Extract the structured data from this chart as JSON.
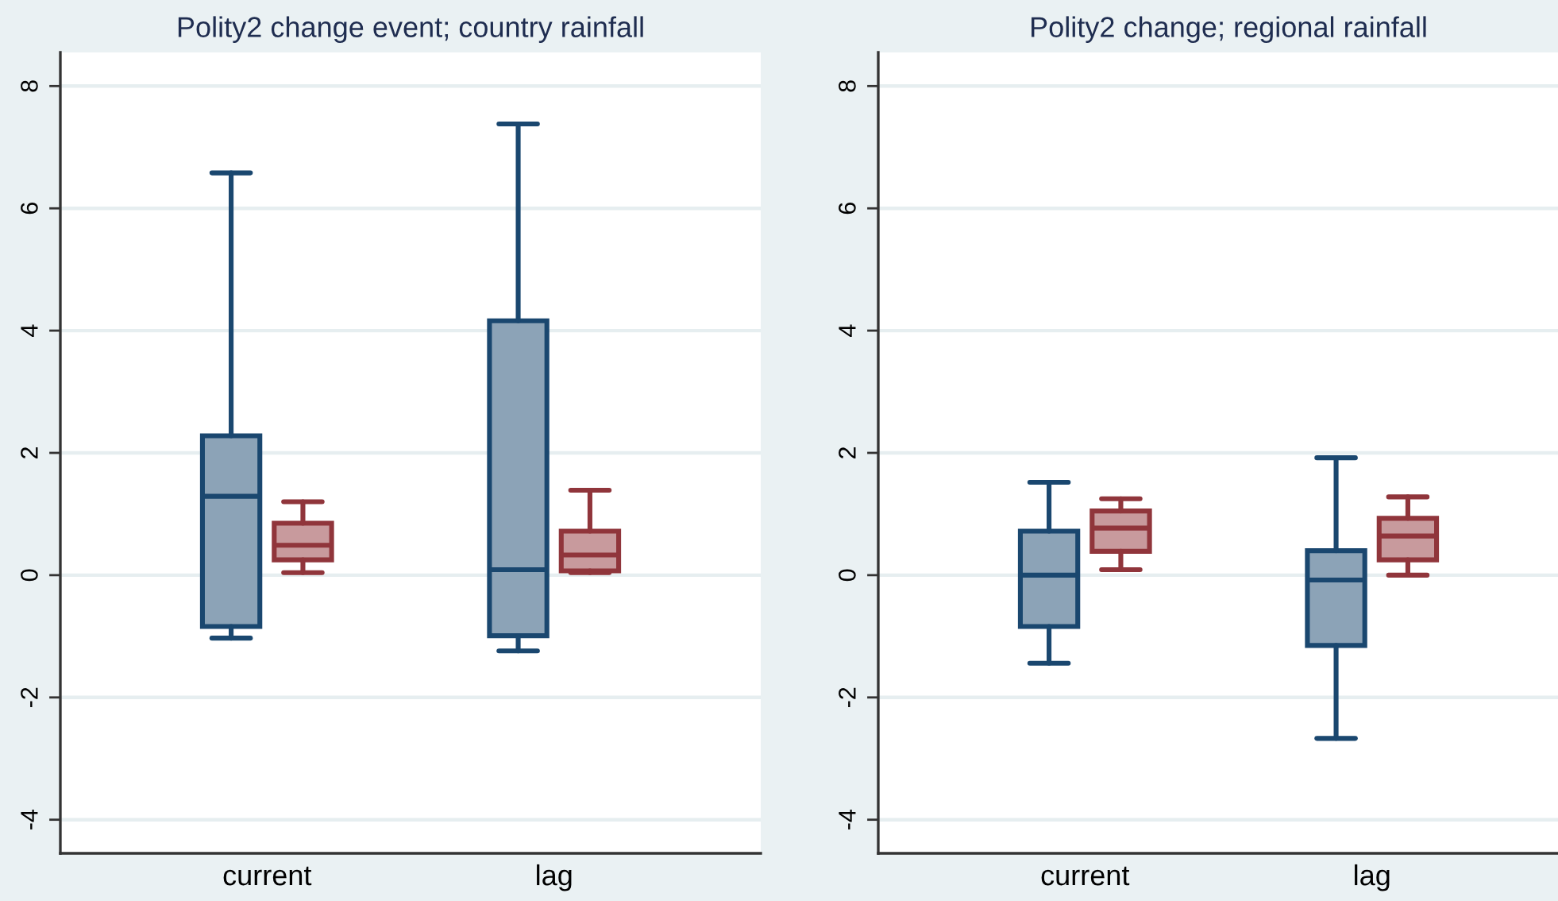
{
  "chart_data": [
    {
      "type": "box",
      "title": "Polity2 change event; country rainfall",
      "categories": [
        "current",
        "lag"
      ],
      "series": [
        {
          "color": "#1a476f",
          "boxes": [
            {
              "low": -1.03,
              "q1": -0.84,
              "median": 1.29,
              "q3": 2.28,
              "high": 6.58
            },
            {
              "low": -1.24,
              "q1": -0.99,
              "median": 0.09,
              "q3": 4.16,
              "high": 7.38
            }
          ]
        },
        {
          "color": "#90353b",
          "boxes": [
            {
              "low": 0.04,
              "q1": 0.25,
              "median": 0.49,
              "q3": 0.85,
              "high": 1.2
            },
            {
              "low": 0.04,
              "q1": 0.07,
              "median": 0.33,
              "q3": 0.72,
              "high": 1.39
            }
          ]
        }
      ],
      "ylim": [
        -4.55,
        8.55
      ],
      "yticks": [
        -4,
        -2,
        0,
        2,
        4,
        6,
        8
      ],
      "grid": "y"
    },
    {
      "type": "box",
      "title": "Polity2 change; regional rainfall",
      "categories": [
        "current",
        "lag"
      ],
      "series": [
        {
          "color": "#1a476f",
          "boxes": [
            {
              "low": -1.44,
              "q1": -0.84,
              "median": 0.0,
              "q3": 0.72,
              "high": 1.52
            },
            {
              "low": -2.67,
              "q1": -1.15,
              "median": -0.08,
              "q3": 0.4,
              "high": 1.92
            }
          ]
        },
        {
          "color": "#90353b",
          "boxes": [
            {
              "low": 0.09,
              "q1": 0.39,
              "median": 0.77,
              "q3": 1.05,
              "high": 1.25
            },
            {
              "low": 0.0,
              "q1": 0.25,
              "median": 0.64,
              "q3": 0.93,
              "high": 1.28
            }
          ]
        }
      ],
      "ylim": [
        -4.55,
        8.55
      ],
      "yticks": [
        -4,
        -2,
        0,
        2,
        4,
        6,
        8
      ],
      "grid": "y"
    }
  ]
}
